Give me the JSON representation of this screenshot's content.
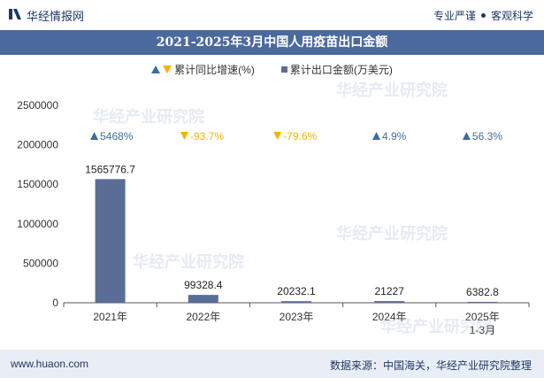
{
  "header": {
    "brand": "华经情报网",
    "right_a": "专业严谨",
    "right_b": "客观科学"
  },
  "title": "2021-2025年3月中国人用疫苗出口金额",
  "legend": {
    "growth": "累计同比增速(%)",
    "amount": "累计出口金额(万美元)"
  },
  "chart_data": {
    "type": "bar",
    "categories": [
      "2021年",
      "2022年",
      "2023年",
      "2024年",
      "2025年\n1-3月"
    ],
    "series": [
      {
        "name": "累计出口金额(万美元)",
        "values": [
          1565776.7,
          99328.4,
          20232.1,
          21227,
          6382.8
        ],
        "labels": [
          "1565776.7",
          "99328.4",
          "20232.1",
          "21227",
          "6382.8"
        ],
        "color": "#5a6d96"
      },
      {
        "name": "累计同比增速(%)",
        "values": [
          5468,
          -93.7,
          -79.6,
          4.9,
          56.3
        ],
        "labels": [
          "5468%",
          "-93.7%",
          "-79.6%",
          "4.9%",
          "56.3%"
        ],
        "up_color": "#3d6e9c",
        "down_color": "#f0b400"
      }
    ],
    "yticks": [
      "0",
      "500000",
      "1000000",
      "1500000",
      "2000000",
      "2500000"
    ],
    "ylim": [
      0,
      2500000
    ]
  },
  "watermark": "华经产业研究院",
  "footer": {
    "url": "www.huaon.com",
    "source": "数据来源：中国海关，华经产业研究院整理"
  }
}
